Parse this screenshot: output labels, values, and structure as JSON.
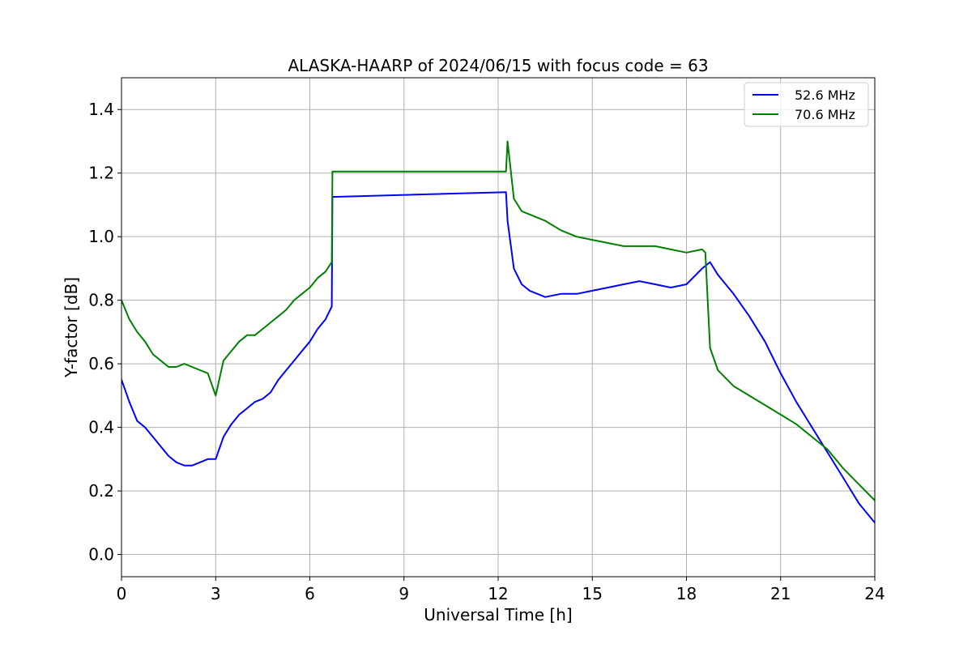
{
  "chart_data": {
    "type": "line",
    "title": "ALASKA-HAARP of 2024/06/15 with focus code = 63",
    "xlabel": "Universal Time [h]",
    "ylabel": "Y-factor [dB]",
    "xlim": [
      0,
      24
    ],
    "ylim": [
      -0.07,
      1.5
    ],
    "xticks": [
      0,
      3,
      6,
      9,
      12,
      15,
      18,
      21,
      24
    ],
    "yticks": [
      0.0,
      0.2,
      0.4,
      0.6,
      0.8,
      1.0,
      1.2,
      1.4
    ],
    "xtick_labels": [
      "0",
      "3",
      "6",
      "9",
      "12",
      "15",
      "18",
      "21",
      "24"
    ],
    "ytick_labels": [
      "0.0",
      "0.2",
      "0.4",
      "0.6",
      "0.8",
      "1.0",
      "1.2",
      "1.4"
    ],
    "grid": true,
    "legend_position": "top-right",
    "series": [
      {
        "name": "52.6 MHz",
        "color": "#0000ff",
        "x": [
          0.0,
          0.25,
          0.5,
          0.75,
          1.0,
          1.25,
          1.5,
          1.75,
          2.0,
          2.25,
          2.5,
          2.75,
          3.0,
          3.25,
          3.5,
          3.75,
          4.0,
          4.25,
          4.5,
          4.75,
          5.0,
          5.25,
          5.5,
          5.75,
          6.0,
          6.25,
          6.5,
          6.7,
          6.72,
          12.25,
          12.3,
          12.5,
          12.75,
          13.0,
          13.5,
          14.0,
          14.5,
          15.0,
          15.5,
          16.0,
          16.5,
          17.0,
          17.5,
          18.0,
          18.5,
          18.75,
          19.0,
          19.5,
          20.0,
          20.5,
          21.0,
          21.5,
          22.0,
          22.5,
          23.0,
          23.5,
          24.0
        ],
        "y": [
          0.55,
          0.48,
          0.42,
          0.4,
          0.37,
          0.34,
          0.31,
          0.29,
          0.28,
          0.28,
          0.29,
          0.3,
          0.3,
          0.37,
          0.41,
          0.44,
          0.46,
          0.48,
          0.49,
          0.51,
          0.55,
          0.58,
          0.61,
          0.64,
          0.67,
          0.71,
          0.74,
          0.78,
          1.125,
          1.14,
          1.05,
          0.9,
          0.85,
          0.83,
          0.81,
          0.82,
          0.82,
          0.83,
          0.84,
          0.85,
          0.86,
          0.85,
          0.84,
          0.85,
          0.9,
          0.92,
          0.88,
          0.82,
          0.75,
          0.67,
          0.57,
          0.48,
          0.4,
          0.32,
          0.24,
          0.16,
          0.1
        ]
      },
      {
        "name": "70.6 MHz",
        "color": "#008000",
        "x": [
          0.0,
          0.25,
          0.5,
          0.75,
          1.0,
          1.25,
          1.5,
          1.75,
          2.0,
          2.25,
          2.5,
          2.75,
          3.0,
          3.25,
          3.5,
          3.75,
          4.0,
          4.25,
          4.5,
          4.75,
          5.0,
          5.25,
          5.5,
          5.75,
          6.0,
          6.25,
          6.5,
          6.7,
          6.72,
          12.25,
          12.3,
          12.5,
          12.75,
          13.0,
          13.5,
          14.0,
          14.5,
          15.0,
          15.5,
          16.0,
          16.5,
          17.0,
          17.5,
          18.0,
          18.5,
          18.6,
          18.75,
          19.0,
          19.5,
          20.0,
          20.5,
          21.0,
          21.5,
          22.0,
          22.5,
          23.0,
          23.5,
          24.0
        ],
        "y": [
          0.8,
          0.74,
          0.7,
          0.67,
          0.63,
          0.61,
          0.59,
          0.59,
          0.6,
          0.59,
          0.58,
          0.57,
          0.5,
          0.61,
          0.64,
          0.67,
          0.69,
          0.69,
          0.71,
          0.73,
          0.75,
          0.77,
          0.8,
          0.82,
          0.84,
          0.87,
          0.89,
          0.92,
          1.205,
          1.205,
          1.3,
          1.12,
          1.08,
          1.07,
          1.05,
          1.02,
          1.0,
          0.99,
          0.98,
          0.97,
          0.97,
          0.97,
          0.96,
          0.95,
          0.96,
          0.95,
          0.65,
          0.58,
          0.53,
          0.5,
          0.47,
          0.44,
          0.41,
          0.37,
          0.33,
          0.27,
          0.22,
          0.17
        ]
      }
    ]
  }
}
